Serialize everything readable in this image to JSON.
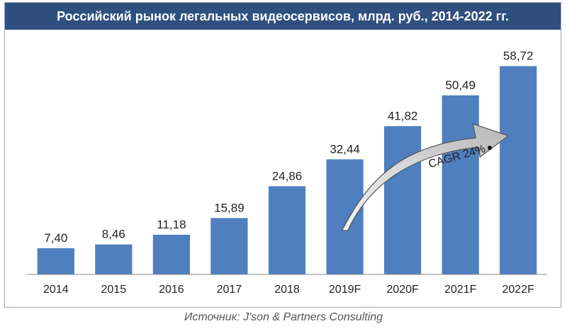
{
  "chart_data": {
    "type": "bar",
    "title": "Российский рынок легальных видеосервисов, млрд. руб., 2014-2022 гг.",
    "categories": [
      "2014",
      "2015",
      "2016",
      "2017",
      "2018",
      "2019F",
      "2020F",
      "2021F",
      "2022F"
    ],
    "values": [
      7.4,
      8.46,
      11.18,
      15.89,
      24.86,
      32.44,
      41.82,
      50.49,
      58.72
    ],
    "value_labels": [
      "7,40",
      "8,46",
      "11,18",
      "15,89",
      "24,86",
      "32,44",
      "41,82",
      "50,49",
      "58,72"
    ],
    "ylim": [
      0,
      65
    ],
    "grid": false,
    "bar_color": "#4f7fbf",
    "annotation": {
      "label": "CAGR 24%",
      "from_category": "2019F",
      "to_category": "2022F",
      "fill": "#cfcfcf"
    }
  },
  "source": "Источник: J'son & Partners Consulting"
}
